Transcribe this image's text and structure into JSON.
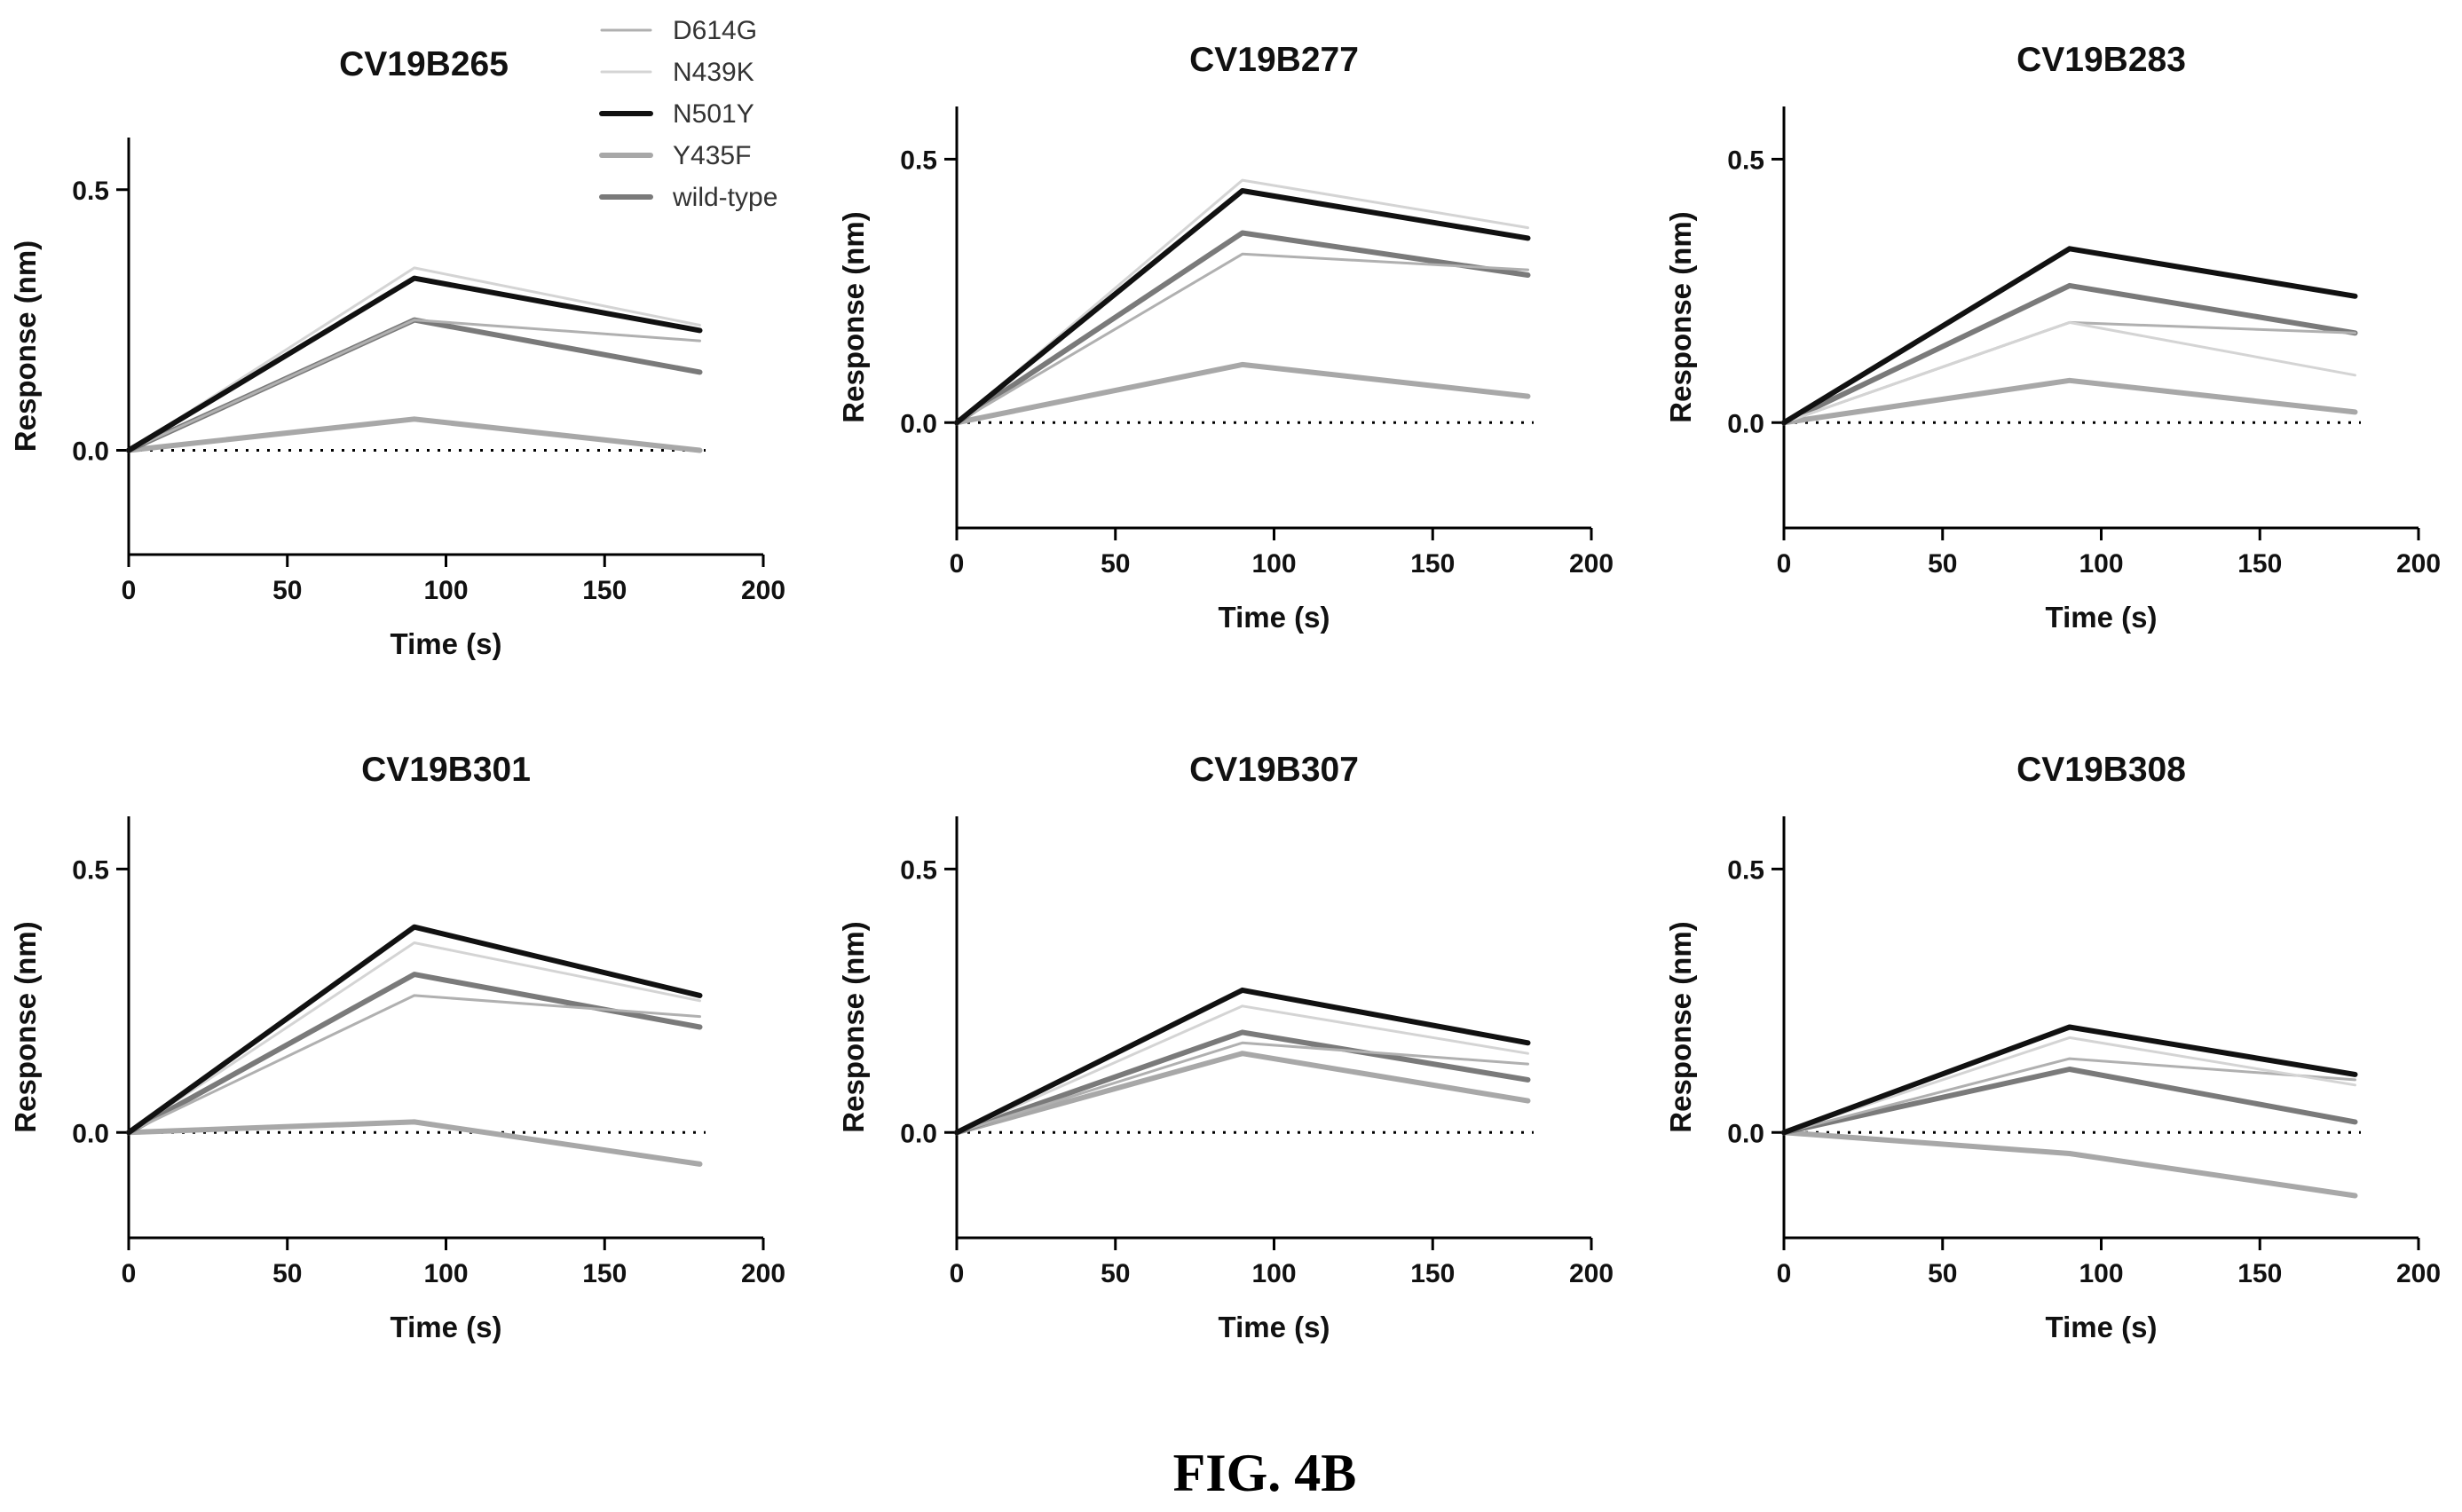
{
  "figure_caption": "FIG. 4B",
  "colors": {
    "D614G": "#b0b0b0",
    "N439K": "#d4d4d4",
    "N501Y": "#111111",
    "Y435F": "#a8a8a8",
    "wild-type": "#7a7a7a"
  },
  "chart_data": [
    {
      "type": "line",
      "title": "CV19B265",
      "xlabel": "Time (s)",
      "ylabel": "Response (nm)",
      "xlim": [
        0,
        200
      ],
      "ylim": [
        -0.2,
        0.6
      ],
      "xticks": [
        "0",
        "50",
        "100",
        "150",
        "200"
      ],
      "yticks": [
        "0.0",
        "0.5"
      ],
      "zero_line": true,
      "legend": {
        "placement": "top-right",
        "entries": [
          "D614G",
          "N439K",
          "N501Y",
          "Y435F",
          "wild-type"
        ]
      },
      "series": [
        {
          "name": "D614G",
          "x": [
            0,
            90,
            180
          ],
          "y": [
            0,
            0.25,
            0.21
          ]
        },
        {
          "name": "N439K",
          "x": [
            0,
            90,
            180
          ],
          "y": [
            0,
            0.35,
            0.24
          ]
        },
        {
          "name": "N501Y",
          "x": [
            0,
            90,
            180
          ],
          "y": [
            0,
            0.33,
            0.23
          ]
        },
        {
          "name": "Y435F",
          "x": [
            0,
            90,
            180
          ],
          "y": [
            0,
            0.06,
            0.0
          ]
        },
        {
          "name": "wild-type",
          "x": [
            0,
            90,
            180
          ],
          "y": [
            0,
            0.25,
            0.15
          ]
        }
      ]
    },
    {
      "type": "line",
      "title": "CV19B277",
      "xlabel": "Time (s)",
      "ylabel": "Response (nm)",
      "xlim": [
        0,
        200
      ],
      "ylim": [
        -0.2,
        0.6
      ],
      "xticks": [
        "0",
        "50",
        "100",
        "150",
        "200"
      ],
      "yticks": [
        "0.0",
        "0.5"
      ],
      "zero_line": true,
      "series": [
        {
          "name": "D614G",
          "x": [
            0,
            90,
            180
          ],
          "y": [
            0,
            0.32,
            0.29
          ]
        },
        {
          "name": "N439K",
          "x": [
            0,
            90,
            180
          ],
          "y": [
            0,
            0.46,
            0.37
          ]
        },
        {
          "name": "N501Y",
          "x": [
            0,
            90,
            180
          ],
          "y": [
            0,
            0.44,
            0.35
          ]
        },
        {
          "name": "Y435F",
          "x": [
            0,
            90,
            180
          ],
          "y": [
            0,
            0.11,
            0.05
          ]
        },
        {
          "name": "wild-type",
          "x": [
            0,
            90,
            180
          ],
          "y": [
            0,
            0.36,
            0.28
          ]
        }
      ]
    },
    {
      "type": "line",
      "title": "CV19B283",
      "xlabel": "Time (s)",
      "ylabel": "Response (nm)",
      "xlim": [
        0,
        200
      ],
      "ylim": [
        -0.2,
        0.6
      ],
      "xticks": [
        "0",
        "50",
        "100",
        "150",
        "200"
      ],
      "yticks": [
        "0.0",
        "0.5"
      ],
      "zero_line": true,
      "series": [
        {
          "name": "D614G",
          "x": [
            0,
            90,
            180
          ],
          "y": [
            0,
            0.19,
            0.17
          ]
        },
        {
          "name": "N439K",
          "x": [
            0,
            90,
            180
          ],
          "y": [
            0,
            0.19,
            0.09
          ]
        },
        {
          "name": "N501Y",
          "x": [
            0,
            90,
            180
          ],
          "y": [
            0,
            0.33,
            0.24
          ]
        },
        {
          "name": "Y435F",
          "x": [
            0,
            90,
            180
          ],
          "y": [
            0,
            0.08,
            0.02
          ]
        },
        {
          "name": "wild-type",
          "x": [
            0,
            90,
            180
          ],
          "y": [
            0,
            0.26,
            0.17
          ]
        }
      ]
    },
    {
      "type": "line",
      "title": "CV19B301",
      "xlabel": "Time (s)",
      "ylabel": "Response (nm)",
      "xlim": [
        0,
        200
      ],
      "ylim": [
        -0.2,
        0.6
      ],
      "xticks": [
        "0",
        "50",
        "100",
        "150",
        "200"
      ],
      "yticks": [
        "0.0",
        "0.5"
      ],
      "zero_line": true,
      "series": [
        {
          "name": "D614G",
          "x": [
            0,
            90,
            180
          ],
          "y": [
            0,
            0.26,
            0.22
          ]
        },
        {
          "name": "N439K",
          "x": [
            0,
            90,
            180
          ],
          "y": [
            0,
            0.36,
            0.25
          ]
        },
        {
          "name": "N501Y",
          "x": [
            0,
            90,
            180
          ],
          "y": [
            0,
            0.39,
            0.26
          ]
        },
        {
          "name": "Y435F",
          "x": [
            0,
            90,
            180
          ],
          "y": [
            0,
            0.02,
            -0.06
          ]
        },
        {
          "name": "wild-type",
          "x": [
            0,
            90,
            180
          ],
          "y": [
            0,
            0.3,
            0.2
          ]
        }
      ]
    },
    {
      "type": "line",
      "title": "CV19B307",
      "xlabel": "Time (s)",
      "ylabel": "Response (nm)",
      "xlim": [
        0,
        200
      ],
      "ylim": [
        -0.2,
        0.6
      ],
      "xticks": [
        "0",
        "50",
        "100",
        "150",
        "200"
      ],
      "yticks": [
        "0.0",
        "0.5"
      ],
      "zero_line": true,
      "series": [
        {
          "name": "D614G",
          "x": [
            0,
            90,
            180
          ],
          "y": [
            0,
            0.17,
            0.13
          ]
        },
        {
          "name": "N439K",
          "x": [
            0,
            90,
            180
          ],
          "y": [
            0,
            0.24,
            0.15
          ]
        },
        {
          "name": "N501Y",
          "x": [
            0,
            90,
            180
          ],
          "y": [
            0,
            0.27,
            0.17
          ]
        },
        {
          "name": "Y435F",
          "x": [
            0,
            90,
            180
          ],
          "y": [
            0,
            0.15,
            0.06
          ]
        },
        {
          "name": "wild-type",
          "x": [
            0,
            90,
            180
          ],
          "y": [
            0,
            0.19,
            0.1
          ]
        }
      ]
    },
    {
      "type": "line",
      "title": "CV19B308",
      "xlabel": "Time (s)",
      "ylabel": "Response (nm)",
      "xlim": [
        0,
        200
      ],
      "ylim": [
        -0.2,
        0.6
      ],
      "xticks": [
        "0",
        "50",
        "100",
        "150",
        "200"
      ],
      "yticks": [
        "0.0",
        "0.5"
      ],
      "zero_line": true,
      "series": [
        {
          "name": "D614G",
          "x": [
            0,
            90,
            180
          ],
          "y": [
            0,
            0.14,
            0.1
          ]
        },
        {
          "name": "N439K",
          "x": [
            0,
            90,
            180
          ],
          "y": [
            0,
            0.18,
            0.09
          ]
        },
        {
          "name": "N501Y",
          "x": [
            0,
            90,
            180
          ],
          "y": [
            0,
            0.2,
            0.11
          ]
        },
        {
          "name": "Y435F",
          "x": [
            0,
            90,
            180
          ],
          "y": [
            0,
            -0.04,
            -0.12
          ]
        },
        {
          "name": "wild-type",
          "x": [
            0,
            90,
            180
          ],
          "y": [
            0,
            0.12,
            0.02
          ]
        }
      ]
    }
  ]
}
